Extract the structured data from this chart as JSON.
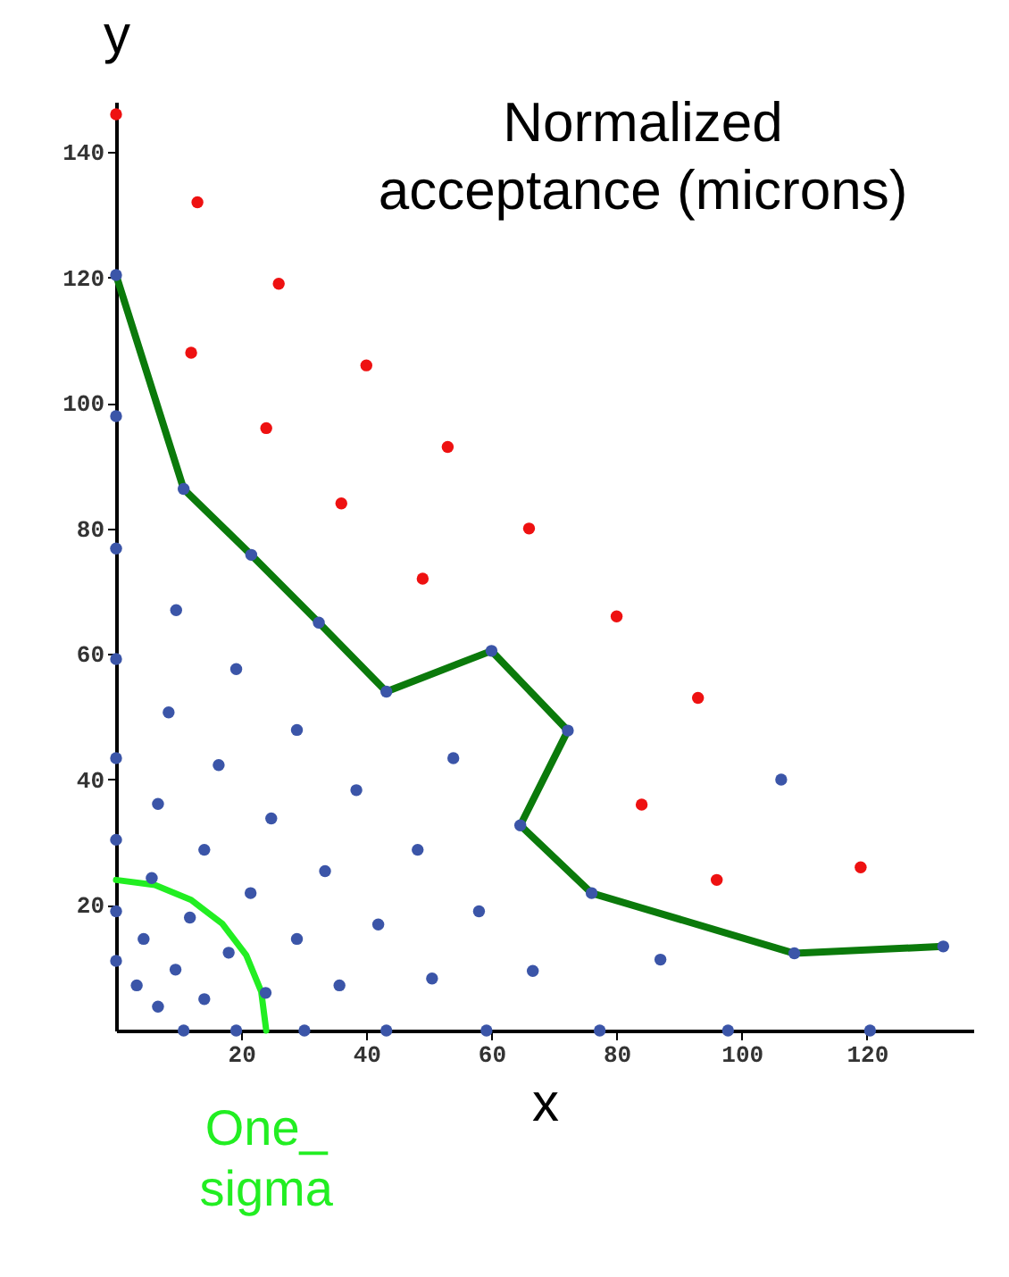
{
  "chart_data": {
    "type": "scatter",
    "title": "Normalized acceptance (microns)",
    "xlabel": "x",
    "ylabel": "y",
    "xlim": [
      0,
      137
    ],
    "ylim": [
      0,
      148
    ],
    "xticks": [
      20,
      40,
      60,
      80,
      100,
      120
    ],
    "yticks": [
      20,
      40,
      60,
      80,
      100,
      120,
      140
    ],
    "grid": false,
    "marker": "circle",
    "series": [
      {
        "color": "#3b55a8",
        "x": [
          0,
          0,
          10.8,
          0,
          21.6,
          9.6,
          32.4,
          60,
          43.2,
          0,
          19.2,
          8.4,
          28.9,
          0,
          53.9,
          16.4,
          38.4,
          6.7,
          24.8,
          0,
          14.1,
          48.2,
          64.6,
          33.4,
          5.7,
          21.5,
          58,
          0,
          11.8,
          4.4,
          28.9,
          41.9,
          18,
          0,
          9.5,
          66.6,
          50.5,
          3.3,
          35.7,
          23.9,
          14.1,
          6.7,
          10.8,
          19.2,
          30.1,
          43.2,
          59.2,
          72.2,
          76,
          106.3,
          87,
          108.4,
          132.2,
          77.3,
          97.8,
          120.5
        ],
        "values": [
          120.4,
          97.9,
          86.3,
          76.8,
          75.8,
          67,
          65,
          60.5,
          54,
          59.2,
          57.6,
          50.7,
          47.9,
          43.4,
          43.4,
          42.3,
          38.3,
          36.1,
          33.8,
          30.4,
          28.8,
          28.8,
          32.7,
          25.4,
          24.3,
          21.9,
          19,
          19,
          18,
          14.6,
          14.6,
          16.9,
          12.4,
          11.1,
          9.7,
          9.5,
          8.3,
          7.2,
          7.2,
          6,
          5,
          3.8,
          0,
          0,
          0,
          0,
          0,
          47.8,
          21.9,
          40,
          11.3,
          12.3,
          13.4,
          0,
          0,
          0
        ]
      },
      {
        "color": "#ee1111",
        "x": [
          0,
          13,
          26,
          12,
          40,
          24,
          53,
          36,
          66,
          49,
          80,
          93,
          84,
          96,
          119
        ],
        "values": [
          146,
          132,
          119,
          108,
          106,
          96,
          93,
          84,
          80,
          72,
          66,
          53,
          36,
          24,
          26
        ]
      },
      {
        "type": "line",
        "marker": "none",
        "color": "#0b7a0b",
        "line_style": "solid",
        "x": [
          0,
          10.8,
          21.6,
          32.4,
          43.2,
          60,
          72.2,
          64.6,
          76,
          108.4,
          132.2
        ],
        "values": [
          120.4,
          86.3,
          75.8,
          65,
          54,
          60.5,
          47.8,
          32.7,
          21.9,
          12.3,
          13.4
        ]
      },
      {
        "type": "line",
        "marker": "none",
        "name": "One_ sigma",
        "color": "#22ee22",
        "line_style": "solid",
        "x": [
          0,
          6.2,
          12,
          17,
          20.8,
          23.2,
          24
        ],
        "values": [
          24,
          23.2,
          20.8,
          17,
          12,
          6.2,
          0
        ]
      }
    ]
  }
}
